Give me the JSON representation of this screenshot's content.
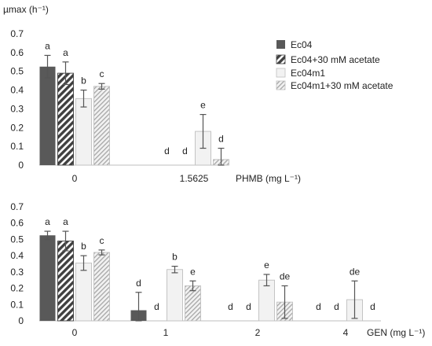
{
  "colors": {
    "Ec04": "#595959",
    "Ec04+30 mM acetate": "#595959",
    "Ec04m1": "#f2f2f2",
    "Ec04m1+30 mM acetate": "#d9d9d9"
  },
  "chart_data": [
    {
      "type": "bar",
      "ylabel": "µmax (h⁻¹)",
      "xlabel": "PHMB (mg L⁻¹)",
      "ylim": [
        0,
        0.7
      ],
      "yticks": [
        "0",
        "0.1",
        "0.2",
        "0.3",
        "0.4",
        "0.5",
        "0.6",
        "0.7"
      ],
      "grid": false,
      "legend": "right",
      "categories": [
        "0",
        "1.5625"
      ],
      "series": [
        {
          "name": "Ec04",
          "pattern": "solid-dark",
          "values": [
            0.525,
            0.0
          ],
          "errors": [
            0.06,
            0.0
          ],
          "labels": [
            "a",
            "d"
          ]
        },
        {
          "name": "Ec04+30 mM acetate",
          "pattern": "hatch-dark",
          "values": [
            0.49,
            0.0
          ],
          "errors": [
            0.06,
            0.0
          ],
          "labels": [
            "a",
            "d"
          ]
        },
        {
          "name": "Ec04m1",
          "pattern": "light",
          "values": [
            0.355,
            0.18
          ],
          "errors": [
            0.045,
            0.09
          ],
          "labels": [
            "b",
            "e"
          ]
        },
        {
          "name": "Ec04m1+30 mM acetate",
          "pattern": "hatch-light",
          "values": [
            0.42,
            0.03
          ],
          "errors": [
            0.015,
            0.06
          ],
          "labels": [
            "c",
            "d"
          ]
        }
      ]
    },
    {
      "type": "bar",
      "ylabel": "",
      "xlabel": "GEN (mg L⁻¹)",
      "ylim": [
        0,
        0.7
      ],
      "yticks": [
        "0",
        "0.1",
        "0.2",
        "0.3",
        "0.4",
        "0.5",
        "0.6",
        "0.7"
      ],
      "grid": false,
      "legend": "none",
      "categories": [
        "0",
        "1",
        "2",
        "4"
      ],
      "series": [
        {
          "name": "Ec04",
          "pattern": "solid-dark",
          "values": [
            0.525,
            0.065,
            0.0,
            0.0
          ],
          "errors": [
            0.025,
            0.11,
            0.0,
            0.0
          ],
          "labels": [
            "a",
            "d",
            "d",
            "d"
          ]
        },
        {
          "name": "Ec04+30 mM acetate",
          "pattern": "hatch-dark",
          "values": [
            0.49,
            0.0,
            0.0,
            0.0
          ],
          "errors": [
            0.06,
            0.0,
            0.0,
            0.0
          ],
          "labels": [
            "a",
            "d",
            "d",
            "d"
          ]
        },
        {
          "name": "Ec04m1",
          "pattern": "light",
          "values": [
            0.355,
            0.315,
            0.25,
            0.13
          ],
          "errors": [
            0.045,
            0.02,
            0.035,
            0.115
          ],
          "labels": [
            "b",
            "b",
            "e",
            "de"
          ]
        },
        {
          "name": "Ec04m1+30 mM acetate",
          "pattern": "hatch-light",
          "values": [
            0.42,
            0.215,
            0.115,
            0.0
          ],
          "errors": [
            0.015,
            0.03,
            0.1,
            0.0
          ],
          "labels": [
            "c",
            "e",
            "de",
            "d"
          ]
        }
      ]
    }
  ]
}
